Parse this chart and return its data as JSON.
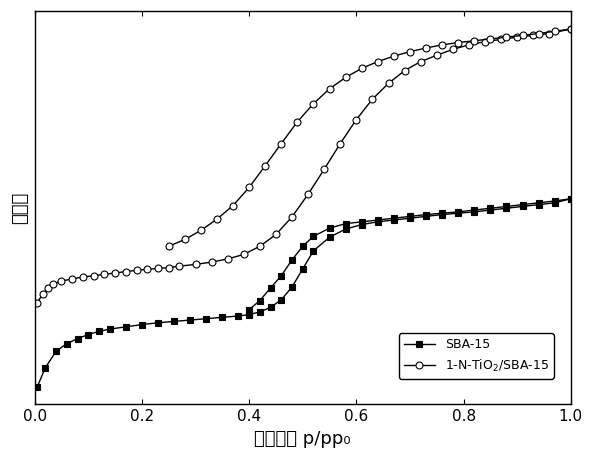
{
  "xlabel_chinese": "相对压力",
  "xlabel_latin": " p/p",
  "ylabel": "吸附量",
  "xlim": [
    0.0,
    1.0
  ],
  "ylim_min": 0.0,
  "xticks": [
    0.0,
    0.2,
    0.4,
    0.6,
    0.8,
    1.0
  ],
  "sba15_adsorption_x": [
    0.005,
    0.02,
    0.04,
    0.06,
    0.08,
    0.1,
    0.12,
    0.14,
    0.17,
    0.2,
    0.23,
    0.26,
    0.29,
    0.32,
    0.35,
    0.38,
    0.4,
    0.42,
    0.44,
    0.46,
    0.48,
    0.5,
    0.52,
    0.55,
    0.58,
    0.61,
    0.64,
    0.67,
    0.7,
    0.73,
    0.76,
    0.79,
    0.82,
    0.85,
    0.88,
    0.91,
    0.94,
    0.97,
    1.0
  ],
  "sba15_adsorption_y": [
    0.03,
    0.072,
    0.108,
    0.125,
    0.136,
    0.145,
    0.152,
    0.157,
    0.162,
    0.167,
    0.171,
    0.174,
    0.177,
    0.18,
    0.183,
    0.186,
    0.189,
    0.195,
    0.205,
    0.222,
    0.25,
    0.29,
    0.33,
    0.36,
    0.378,
    0.388,
    0.394,
    0.398,
    0.402,
    0.406,
    0.41,
    0.413,
    0.416,
    0.42,
    0.424,
    0.428,
    0.432,
    0.436,
    0.445
  ],
  "sba15_desorption_x": [
    1.0,
    0.97,
    0.94,
    0.91,
    0.88,
    0.85,
    0.82,
    0.79,
    0.76,
    0.73,
    0.7,
    0.67,
    0.64,
    0.61,
    0.58,
    0.55,
    0.52,
    0.5,
    0.48,
    0.46,
    0.44,
    0.42,
    0.4
  ],
  "sba15_desorption_y": [
    0.445,
    0.44,
    0.436,
    0.432,
    0.428,
    0.424,
    0.42,
    0.416,
    0.413,
    0.41,
    0.406,
    0.402,
    0.398,
    0.394,
    0.39,
    0.38,
    0.362,
    0.34,
    0.31,
    0.275,
    0.248,
    0.22,
    0.2
  ],
  "ntio2_adsorption_x": [
    0.005,
    0.015,
    0.025,
    0.035,
    0.05,
    0.07,
    0.09,
    0.11,
    0.13,
    0.15,
    0.17,
    0.19,
    0.21,
    0.23,
    0.25,
    0.27,
    0.3,
    0.33,
    0.36,
    0.39,
    0.42,
    0.45,
    0.48,
    0.51,
    0.54,
    0.57,
    0.6,
    0.63,
    0.66,
    0.69,
    0.72,
    0.75,
    0.78,
    0.81,
    0.84,
    0.87,
    0.9,
    0.93,
    0.96,
    1.0
  ],
  "ntio2_adsorption_y": [
    0.215,
    0.235,
    0.248,
    0.257,
    0.263,
    0.268,
    0.272,
    0.275,
    0.278,
    0.281,
    0.284,
    0.287,
    0.289,
    0.291,
    0.293,
    0.296,
    0.3,
    0.305,
    0.312,
    0.322,
    0.34,
    0.366,
    0.405,
    0.455,
    0.51,
    0.567,
    0.62,
    0.665,
    0.7,
    0.728,
    0.748,
    0.762,
    0.775,
    0.785,
    0.792,
    0.797,
    0.802,
    0.806,
    0.81,
    0.82
  ],
  "ntio2_desorption_x": [
    1.0,
    0.97,
    0.94,
    0.91,
    0.88,
    0.85,
    0.82,
    0.79,
    0.76,
    0.73,
    0.7,
    0.67,
    0.64,
    0.61,
    0.58,
    0.55,
    0.52,
    0.49,
    0.46,
    0.43,
    0.4,
    0.37,
    0.34,
    0.31,
    0.28,
    0.25
  ],
  "ntio2_desorption_y": [
    0.82,
    0.815,
    0.81,
    0.806,
    0.802,
    0.798,
    0.794,
    0.79,
    0.785,
    0.778,
    0.77,
    0.76,
    0.748,
    0.733,
    0.713,
    0.688,
    0.655,
    0.615,
    0.567,
    0.518,
    0.47,
    0.43,
    0.4,
    0.375,
    0.355,
    0.34
  ],
  "line_color": "#000000",
  "sba15_marker": "s",
  "ntio2_marker": "o",
  "marker_size": 4,
  "linewidth": 1.0,
  "figsize": [
    5.94,
    4.59
  ],
  "dpi": 100,
  "font_size_label": 13,
  "font_size_tick": 11,
  "font_size_legend": 9,
  "legend_labels": [
    "SBA-15",
    "1-N-TiO$_2$/SBA-15"
  ]
}
